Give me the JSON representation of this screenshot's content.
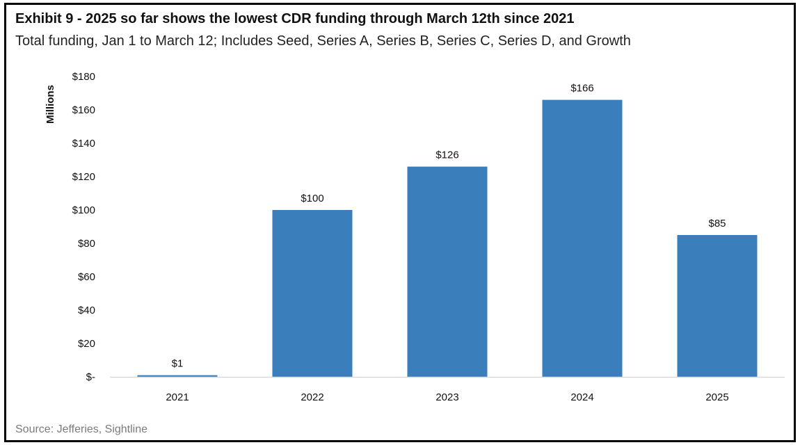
{
  "title": "Exhibit 9 - 2025 so far shows the lowest CDR funding through March 12th since 2021",
  "subtitle": "Total funding, Jan 1 to March 12; Includes Seed, Series A, Series B, Series C, Series D, and Growth",
  "source": "Source: Jefferies, Sightline",
  "chart_data": {
    "type": "bar",
    "categories": [
      "2021",
      "2022",
      "2023",
      "2024",
      "2025"
    ],
    "values": [
      1,
      100,
      126,
      166,
      85
    ],
    "data_labels": [
      "$1",
      "$100",
      "$126",
      "$166",
      "$85"
    ],
    "ylabel": "Millions",
    "xlabel": "",
    "ylim": [
      0,
      180
    ],
    "yticks": [
      0,
      20,
      40,
      60,
      80,
      100,
      120,
      140,
      160,
      180
    ],
    "ytick_labels": [
      "$-",
      "$20",
      "$40",
      "$60",
      "$80",
      "$100",
      "$120",
      "$140",
      "$160",
      "$180"
    ],
    "grid": false,
    "legend": "none",
    "bar_color": "#3a7fbb",
    "axis_color": "#d9d9d9"
  }
}
